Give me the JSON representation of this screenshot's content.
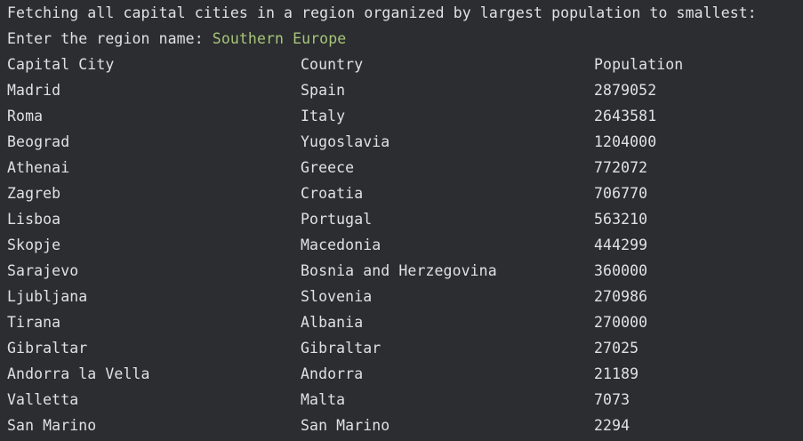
{
  "console": {
    "intro": "Fetching all capital cities in a region organized by largest population to smallest:",
    "prompt": "Enter the region name: ",
    "input_value": "Southern Europe",
    "colors": {
      "background": "#2b2d30",
      "text": "#dfe1e5",
      "input": "#a8c57a"
    }
  },
  "table": {
    "headers": [
      "Capital City",
      "Country",
      "Population"
    ],
    "rows": [
      {
        "city": "Madrid",
        "country": "Spain",
        "population": "2879052"
      },
      {
        "city": "Roma",
        "country": "Italy",
        "population": "2643581"
      },
      {
        "city": "Beograd",
        "country": "Yugoslavia",
        "population": "1204000"
      },
      {
        "city": "Athenai",
        "country": "Greece",
        "population": "772072"
      },
      {
        "city": "Zagreb",
        "country": "Croatia",
        "population": "706770"
      },
      {
        "city": "Lisboa",
        "country": "Portugal",
        "population": "563210"
      },
      {
        "city": "Skopje",
        "country": "Macedonia",
        "population": "444299"
      },
      {
        "city": "Sarajevo",
        "country": "Bosnia and Herzegovina",
        "population": "360000"
      },
      {
        "city": "Ljubljana",
        "country": "Slovenia",
        "population": "270986"
      },
      {
        "city": "Tirana",
        "country": "Albania",
        "population": "270000"
      },
      {
        "city": "Gibraltar",
        "country": "Gibraltar",
        "population": "27025"
      },
      {
        "city": "Andorra la Vella",
        "country": "Andorra",
        "population": "21189"
      },
      {
        "city": "Valletta",
        "country": "Malta",
        "population": "7073"
      },
      {
        "city": "San Marino",
        "country": "San Marino",
        "population": "2294"
      }
    ]
  }
}
